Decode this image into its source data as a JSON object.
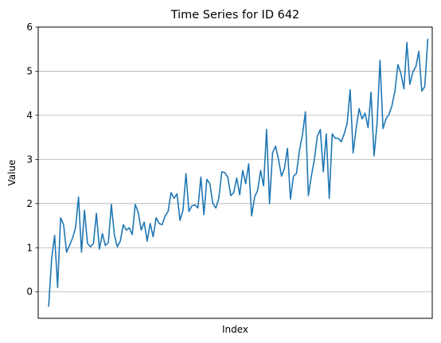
{
  "chart_data": {
    "type": "line",
    "title": "Time Series for ID 642",
    "xlabel": "Index",
    "ylabel": "Value",
    "ylim": [
      -0.6,
      6.0
    ],
    "xlim": [
      -3.5,
      128.5
    ],
    "y_ticks": [
      0,
      1,
      2,
      3,
      4,
      5,
      6
    ],
    "y_tick_labels": [
      "0",
      "1",
      "2",
      "3",
      "4",
      "5",
      "6"
    ],
    "x_ticks_visible": false,
    "grid": "horizontal",
    "legend": "none",
    "series_color": "#1f77b4",
    "grid_color": "#b0b0b0",
    "series": [
      {
        "values": [
          -0.32,
          0.75,
          1.28,
          0.1,
          1.68,
          1.52,
          0.9,
          1.05,
          1.22,
          1.45,
          2.15,
          0.9,
          1.85,
          1.1,
          1.02,
          1.1,
          1.78,
          0.97,
          1.32,
          1.05,
          1.12,
          1.98,
          1.3,
          1.02,
          1.15,
          1.52,
          1.4,
          1.45,
          1.3,
          1.98,
          1.8,
          1.4,
          1.58,
          1.15,
          1.55,
          1.25,
          1.68,
          1.55,
          1.52,
          1.72,
          1.82,
          2.25,
          2.12,
          2.22,
          1.62,
          1.85,
          2.68,
          1.82,
          1.95,
          1.97,
          1.9,
          2.6,
          1.75,
          2.55,
          2.45,
          2.0,
          1.9,
          2.12,
          2.72,
          2.7,
          2.6,
          2.18,
          2.25,
          2.58,
          2.2,
          2.75,
          2.45,
          2.9,
          1.72,
          2.15,
          2.3,
          2.75,
          2.4,
          3.68,
          2.0,
          3.15,
          3.3,
          3.0,
          2.62,
          2.8,
          3.25,
          2.1,
          2.62,
          2.68,
          3.2,
          3.55,
          4.08,
          2.18,
          2.62,
          3.0,
          3.52,
          3.68,
          2.72,
          3.58,
          2.12,
          3.58,
          3.48,
          3.48,
          3.4,
          3.58,
          3.82,
          4.58,
          3.15,
          3.7,
          4.15,
          3.92,
          4.05,
          3.72,
          4.52,
          3.08,
          3.8,
          5.25,
          3.7,
          3.92,
          4.02,
          4.22,
          4.55,
          5.15,
          4.95,
          4.6,
          5.65,
          4.7,
          4.98,
          5.1,
          5.45,
          4.55,
          4.65,
          5.72
        ]
      }
    ]
  }
}
